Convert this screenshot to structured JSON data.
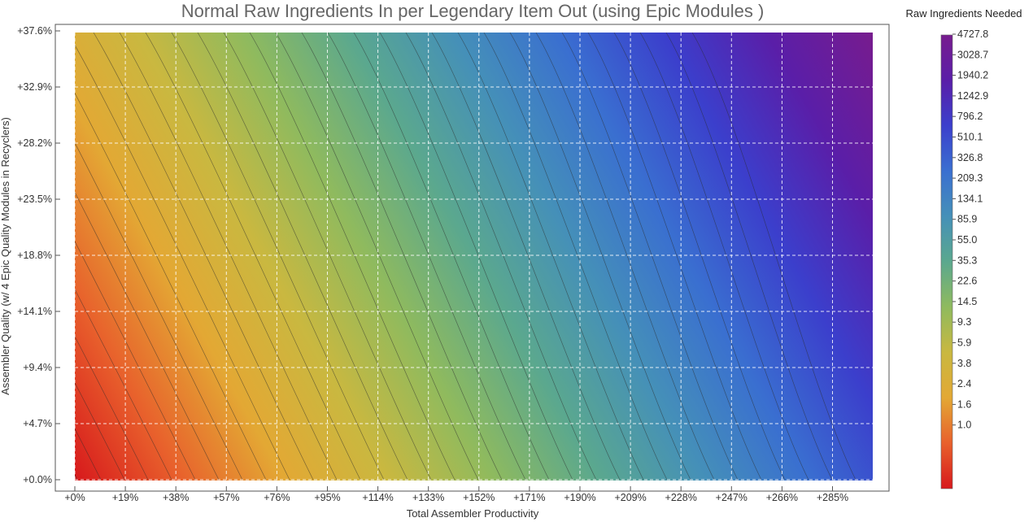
{
  "chart_data": {
    "type": "heatmap",
    "title": "Normal Raw Ingredients In per Legendary Item Out (using Epic Modules )",
    "xlabel": "Total Assembler Productivity",
    "ylabel": "Assembler Quality     (w/ 4 Epic Quality Modules in Recyclers)",
    "x_ticks": [
      "+0%",
      "+19%",
      "+38%",
      "+57%",
      "+76%",
      "+95%",
      "+114%",
      "+133%",
      "+152%",
      "+171%",
      "+190%",
      "+209%",
      "+228%",
      "+247%",
      "+266%",
      "+285%"
    ],
    "y_ticks": [
      "+0.0%",
      "+4.7%",
      "+9.4%",
      "+14.1%",
      "+18.8%",
      "+23.5%",
      "+28.2%",
      "+32.9%",
      "+37.6%"
    ],
    "xlim": [
      0,
      300
    ],
    "ylim": [
      0,
      37.6
    ],
    "grid": true,
    "colorbar": {
      "title": "Raw Ingredients Needed",
      "labels": [
        "4727.8",
        "3028.7",
        "1940.2",
        "1242.9",
        "796.2",
        "510.1",
        "326.8",
        "209.3",
        "134.1",
        "85.9",
        "55.0",
        "35.3",
        "22.6",
        "14.5",
        "9.3",
        "5.9",
        "3.8",
        "2.4",
        "1.6",
        "1.0"
      ],
      "colors": [
        "#d7191c",
        "#e8602c",
        "#e3a834",
        "#c9b840",
        "#8fba5e",
        "#5ba88e",
        "#4590b8",
        "#3a6fd0",
        "#3b3fcc",
        "#5a1ea8",
        "#771c8e"
      ]
    }
  }
}
